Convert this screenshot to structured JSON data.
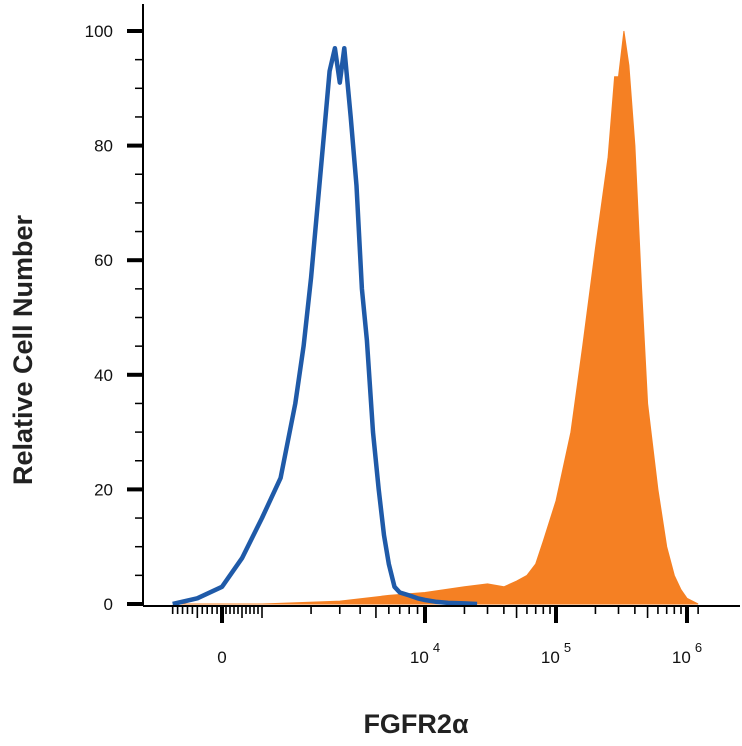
{
  "chart_data": {
    "type": "area",
    "xlabel": "FGFR2α",
    "ylabel": "Relative Cell Number",
    "ylim": [
      0,
      100
    ],
    "y_ticks": [
      0,
      20,
      40,
      60,
      80,
      100
    ],
    "x_tick_labels": [
      {
        "base": "0",
        "exp": ""
      },
      {
        "base": "10",
        "exp": "4"
      },
      {
        "base": "10",
        "exp": "5"
      },
      {
        "base": "10",
        "exp": "6"
      }
    ],
    "x_tick_values": [
      0,
      10000,
      100000,
      1000000
    ],
    "x_scale": "biexponential",
    "grid": false,
    "series": [
      {
        "style": "outline",
        "color": "#1f5aa8",
        "x": [
          -1000,
          -500,
          0,
          500,
          1000,
          1300,
          1600,
          1800,
          2000,
          2200,
          2400,
          2600,
          2800,
          3000,
          3200,
          3500,
          3800,
          4100,
          4400,
          4800,
          5200,
          5600,
          6000,
          6500,
          7000,
          8000,
          9000,
          10000,
          12000,
          15000,
          20000,
          25000
        ],
        "y": [
          0,
          1,
          3,
          8,
          15,
          22,
          35,
          45,
          57,
          70,
          82,
          93,
          97,
          91,
          97,
          85,
          73,
          55,
          46,
          30,
          20,
          12,
          7,
          3,
          2,
          1.5,
          1,
          0.7,
          0.4,
          0.2,
          0.1,
          0
        ]
      },
      {
        "style": "filled",
        "color": "#f58023",
        "x": [
          -1000,
          0,
          1000,
          3000,
          6000,
          10000,
          20000,
          30000,
          40000,
          50000,
          60000,
          70000,
          80000,
          100000,
          130000,
          160000,
          200000,
          250000,
          280000,
          300000,
          330000,
          360000,
          400000,
          450000,
          500000,
          600000,
          700000,
          800000,
          900000,
          1000000,
          1200000
        ],
        "y": [
          0,
          0,
          0,
          0.5,
          1.5,
          2,
          3,
          3.5,
          3,
          4,
          5,
          7,
          11,
          18,
          30,
          45,
          62,
          78,
          92,
          92,
          100,
          94,
          80,
          55,
          35,
          20,
          10,
          5,
          2.5,
          1,
          0
        ]
      }
    ]
  }
}
